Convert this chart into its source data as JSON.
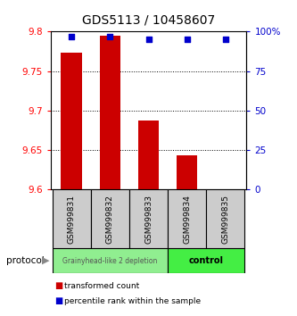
{
  "title": "GDS5113 / 10458607",
  "samples": [
    "GSM999831",
    "GSM999832",
    "GSM999833",
    "GSM999834",
    "GSM999835"
  ],
  "bar_values": [
    9.773,
    9.795,
    9.687,
    9.643,
    9.601
  ],
  "percentile_values": [
    97,
    97,
    95,
    95,
    95
  ],
  "ylim_left": [
    9.6,
    9.8
  ],
  "ylim_right": [
    0,
    100
  ],
  "yticks_left": [
    9.6,
    9.65,
    9.7,
    9.75,
    9.8
  ],
  "yticks_right": [
    0,
    25,
    50,
    75,
    100
  ],
  "bar_color": "#cc0000",
  "dot_color": "#0000cc",
  "group1_label": "Grainyhead-like 2 depletion",
  "group2_label": "control",
  "group1_color": "#90ee90",
  "group2_color": "#44ee44",
  "group1_samples": [
    0,
    1,
    2
  ],
  "group2_samples": [
    3,
    4
  ],
  "protocol_label": "protocol",
  "legend_bar_label": "transformed count",
  "legend_dot_label": "percentile rank within the sample",
  "sample_box_color": "#cccccc",
  "title_fontsize": 10
}
